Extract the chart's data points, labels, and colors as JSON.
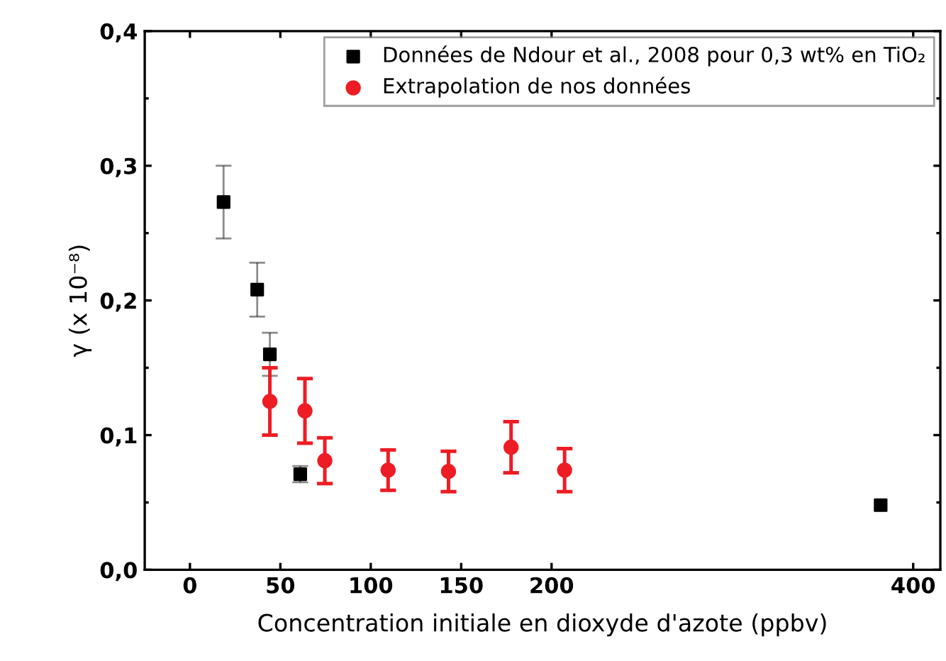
{
  "chart_data": {
    "type": "scatter",
    "xlabel": "Concentration initiale en dioxyde d'azote (ppbv)",
    "ylabel": "γ (x 10⁻⁸)",
    "xlim": [
      -25,
      415
    ],
    "xticks": [
      0,
      50,
      100,
      150,
      200,
      400
    ],
    "ylim": [
      0,
      0.4
    ],
    "yticks": [
      {
        "value": 0,
        "label": "0,0"
      },
      {
        "value": 0.1,
        "label": "0,1"
      },
      {
        "value": 0.2,
        "label": "0,2"
      },
      {
        "value": 0.3,
        "label": "0,3"
      },
      {
        "value": 0.4,
        "label": "0,4"
      }
    ],
    "legend": "top right",
    "grid": false,
    "series": [
      {
        "name": "Données de Ndour et al., 2008 pour 0,3 wt% en TiO₂",
        "color": "#000000",
        "marker": "square",
        "x": [
          18.6,
          37.2,
          44.2,
          61,
          382
        ],
        "values": [
          0.273,
          0.208,
          0.16,
          0.071,
          0.048
        ],
        "errors": [
          0.027,
          0.02,
          0.016,
          0.006,
          null
        ]
      },
      {
        "name": "Extrapolation de nos données",
        "color": "#ee1c24",
        "marker": "circle",
        "x": [
          44.2,
          63.6,
          74.6,
          109.6,
          143,
          177.6,
          207.2
        ],
        "values": [
          0.125,
          0.118,
          0.081,
          0.074,
          0.073,
          0.091,
          0.074
        ],
        "errors": [
          0.025,
          0.024,
          0.017,
          0.015,
          0.015,
          0.019,
          0.016
        ]
      }
    ]
  }
}
